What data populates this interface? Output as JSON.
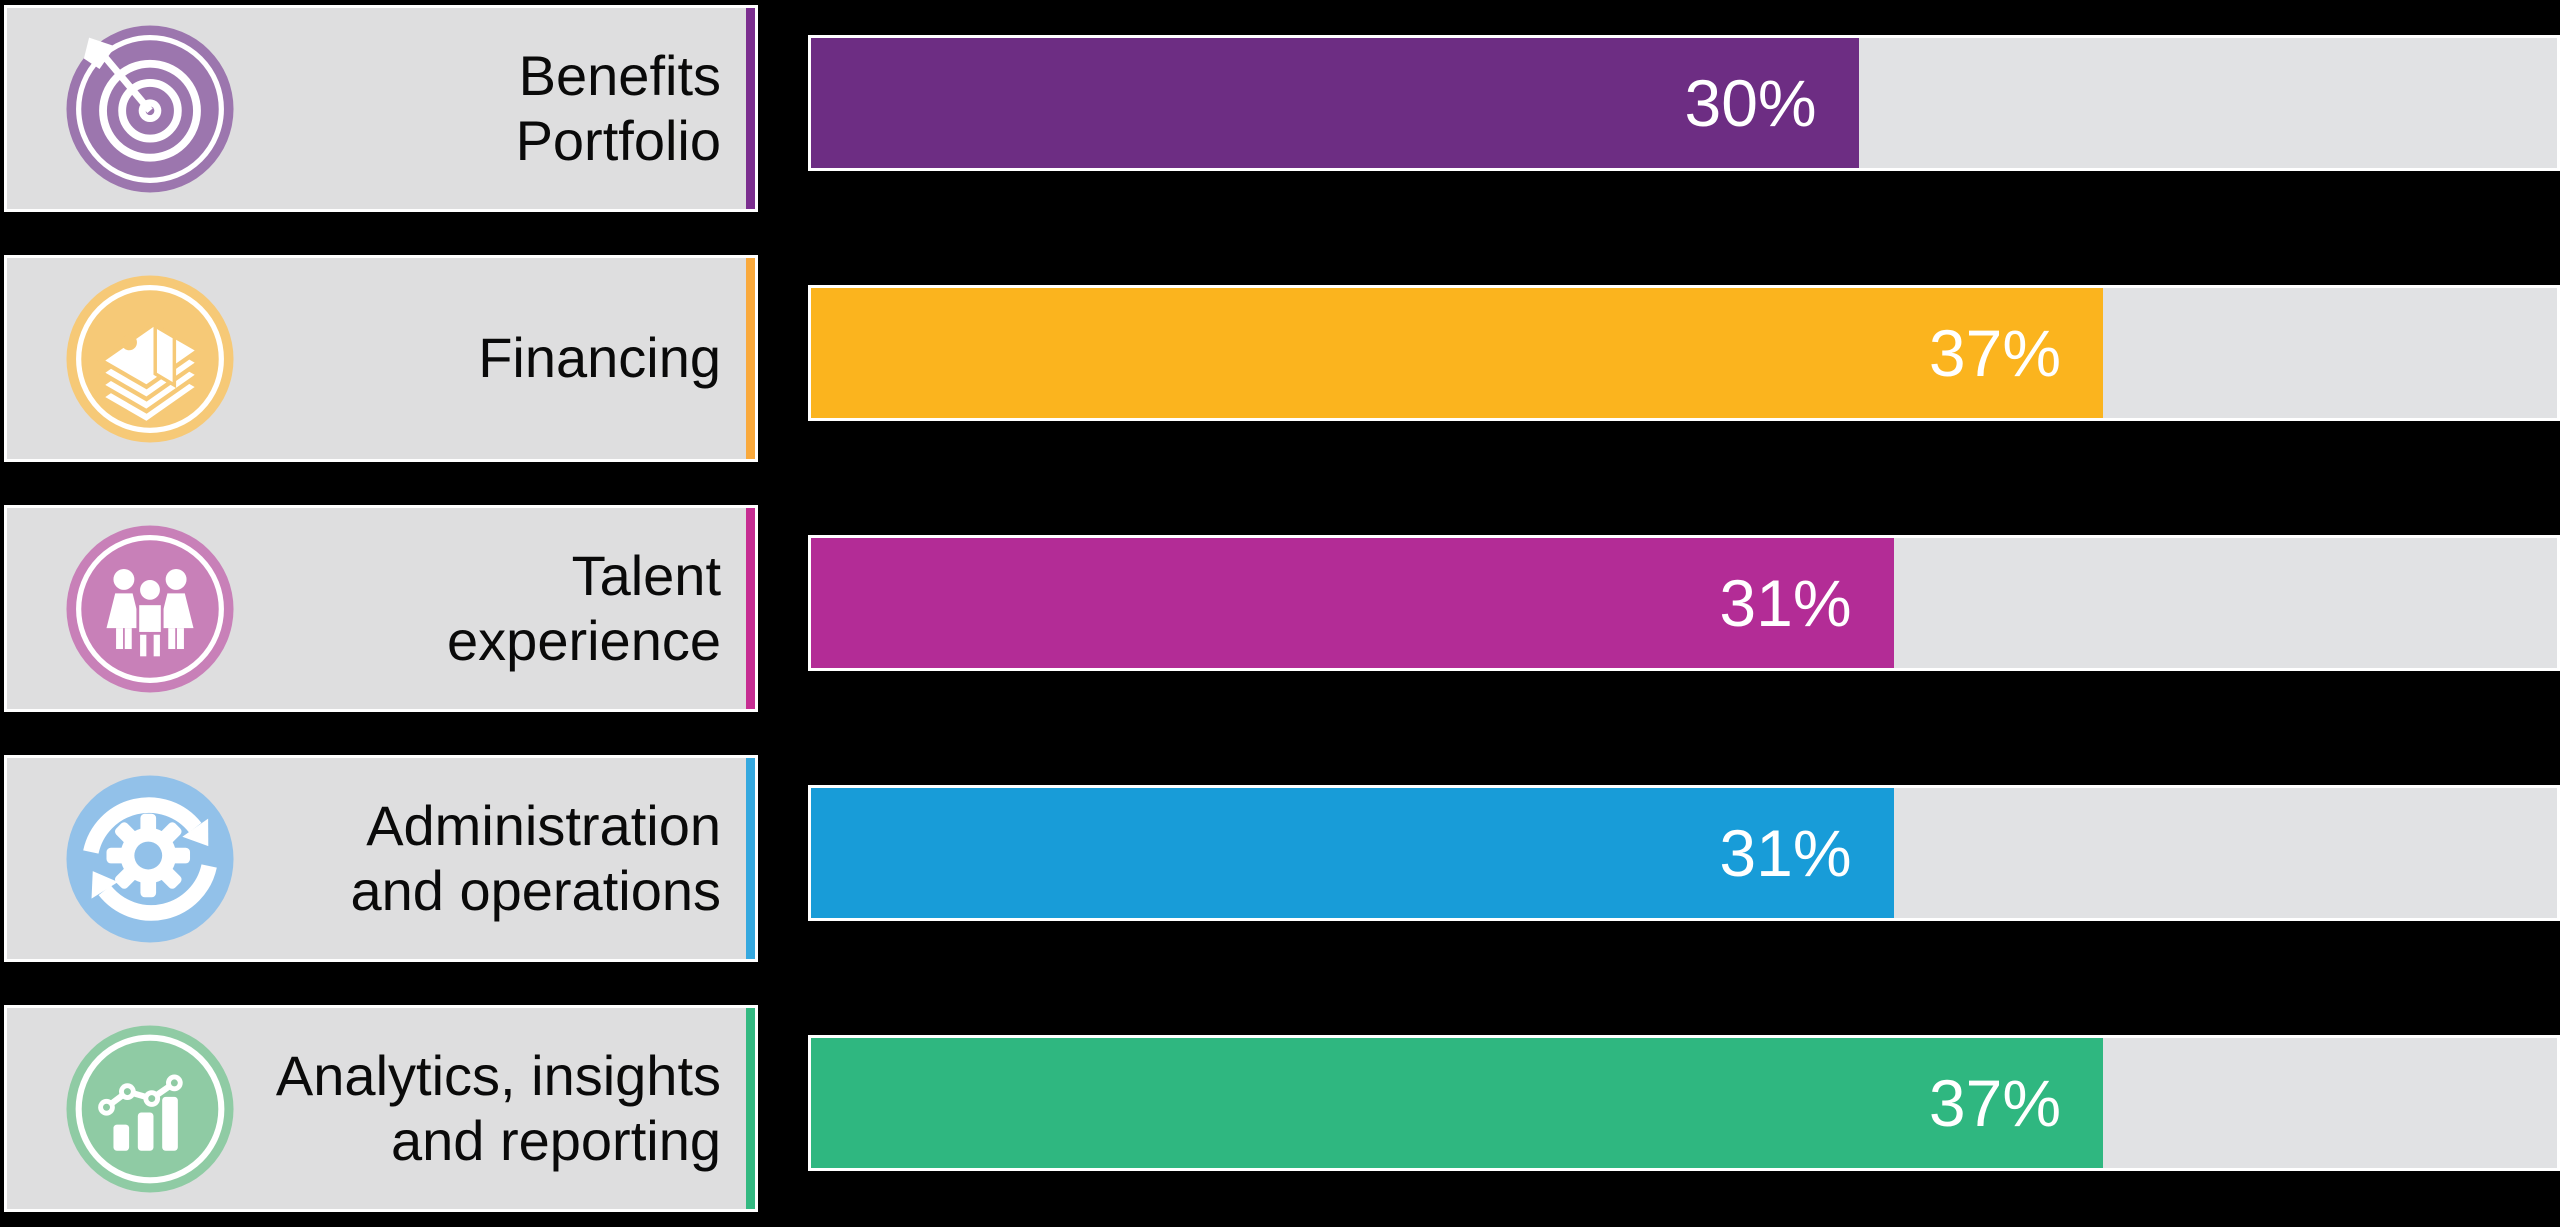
{
  "chart_data": {
    "type": "bar",
    "orientation": "horizontal",
    "title": "",
    "categories": [
      "Benefits Portfolio",
      "Financing",
      "Talent experience",
      "Administration and operations",
      "Analytics, insights and reporting"
    ],
    "values": [
      30,
      37,
      31,
      31,
      37
    ],
    "value_labels": [
      "30%",
      "37%",
      "31%",
      "31%",
      "37%"
    ],
    "unit": "%",
    "xlim": [
      0,
      50
    ],
    "grid": false,
    "legend": false,
    "bar_colors": [
      "#6D2D83",
      "#FBB41E",
      "#B32C96",
      "#189CD8",
      "#2FB780"
    ],
    "track_color": "#E1E2E4"
  },
  "rows": [
    {
      "label": "Benefits\nPortfolio",
      "value": 30,
      "value_label": "30%",
      "bar_color": "#6D2D83",
      "stripe_color": "#7B2E8F",
      "icon_color": "#9C76AE",
      "icon": "target-icon"
    },
    {
      "label": "Financing",
      "value": 37,
      "value_label": "37%",
      "bar_color": "#FBB41E",
      "stripe_color": "#F9A93C",
      "icon_color": "#F6C977",
      "icon": "money-stack-icon"
    },
    {
      "label": "Talent\nexperience",
      "value": 31,
      "value_label": "31%",
      "bar_color": "#B32C96",
      "stripe_color": "#C62D92",
      "icon_color": "#C880B8",
      "icon": "people-icon"
    },
    {
      "label": "Administration\nand operations",
      "value": 31,
      "value_label": "31%",
      "bar_color": "#189CD8",
      "stripe_color": "#35A8DF",
      "icon_color": "#92C1E9",
      "icon": "sync-gear-icon"
    },
    {
      "label": "Analytics, insights\nand reporting",
      "value": 37,
      "value_label": "37%",
      "bar_color": "#2FB780",
      "stripe_color": "#33B981",
      "icon_color": "#8FCBA4",
      "icon": "analytics-icon"
    }
  ],
  "styles": {
    "background": "#000000",
    "label_card_bg": "#DEDEDF",
    "outline": "#FFFFFF",
    "label_text_color": "#0A0A0A",
    "value_text_color": "#FFFFFF"
  }
}
